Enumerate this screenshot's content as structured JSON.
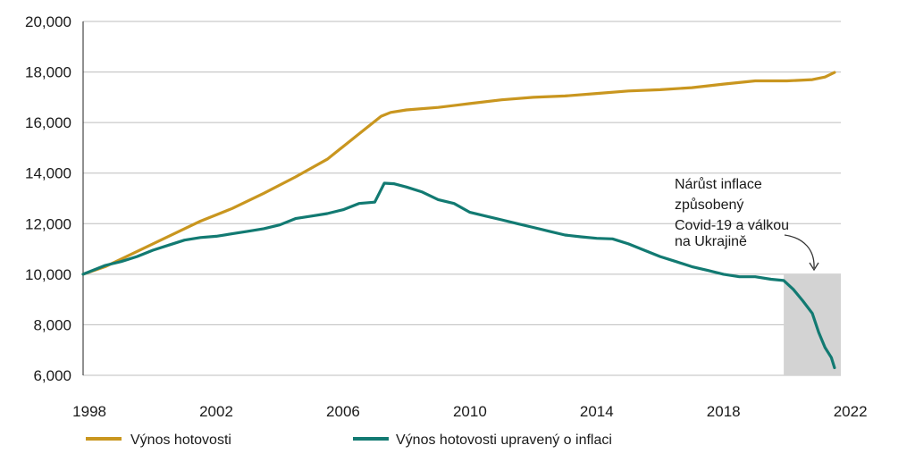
{
  "chart_data": {
    "type": "line",
    "title": "",
    "xlabel": "",
    "ylabel": "",
    "xlim": [
      1997.8,
      2021.7
    ],
    "ylim": [
      6000,
      20000
    ],
    "y_ticks": [
      6000,
      8000,
      10000,
      12000,
      14000,
      16000,
      18000,
      20000
    ],
    "y_tick_labels": [
      "6,000",
      "8,000",
      "10,000",
      "12,000",
      "14,000",
      "16,000",
      "18,000",
      "20,000"
    ],
    "x_ticks": [
      1998,
      2002,
      2006,
      2010,
      2014,
      2018,
      2022
    ],
    "x_tick_labels": [
      "1998",
      "2002",
      "2006",
      "2010",
      "2014",
      "2018",
      "2022"
    ],
    "grid": "horizontal",
    "legend_position": "bottom",
    "series": [
      {
        "name": "Výnos hotovosti",
        "color": "#C9961F",
        "x": [
          1997.8,
          1998.5,
          1999.5,
          2000.5,
          2001.5,
          2002.5,
          2003.5,
          2004.5,
          2005.5,
          2006.5,
          2007.2,
          2007.5,
          2008.0,
          2009.0,
          2010.0,
          2011.0,
          2012.0,
          2013.0,
          2014.0,
          2015.0,
          2016.0,
          2017.0,
          2018.0,
          2019.0,
          2020.0,
          2020.8,
          2021.2,
          2021.5
        ],
        "values": [
          10000,
          10300,
          10900,
          11500,
          12100,
          12600,
          13200,
          13850,
          14550,
          15550,
          16250,
          16400,
          16500,
          16600,
          16750,
          16900,
          17000,
          17050,
          17150,
          17250,
          17300,
          17380,
          17520,
          17650,
          17650,
          17700,
          17800,
          17980
        ]
      },
      {
        "name": "Výnos hotovosti upravený o inflaci",
        "color": "#127A72",
        "x": [
          1997.8,
          1998.5,
          1999.0,
          1999.5,
          2000.0,
          2000.5,
          2001.0,
          2001.5,
          2002.0,
          2002.5,
          2003.0,
          2003.5,
          2004.0,
          2004.5,
          2005.0,
          2005.5,
          2006.0,
          2006.5,
          2007.0,
          2007.3,
          2007.6,
          2008.0,
          2008.5,
          2009.0,
          2009.5,
          2010.0,
          2010.5,
          2011.0,
          2011.5,
          2012.0,
          2012.5,
          2013.0,
          2013.5,
          2014.0,
          2014.5,
          2015.0,
          2015.5,
          2016.0,
          2016.5,
          2017.0,
          2017.5,
          2018.0,
          2018.5,
          2019.0,
          2019.5,
          2019.9,
          2020.2,
          2020.5,
          2020.8,
          2021.0,
          2021.2,
          2021.4,
          2021.5
        ],
        "values": [
          10000,
          10350,
          10500,
          10700,
          10950,
          11150,
          11350,
          11450,
          11500,
          11600,
          11700,
          11800,
          11950,
          12200,
          12300,
          12400,
          12550,
          12800,
          12850,
          13600,
          13580,
          13450,
          13250,
          12950,
          12800,
          12450,
          12300,
          12150,
          12000,
          11850,
          11700,
          11550,
          11480,
          11420,
          11400,
          11200,
          10950,
          10700,
          10500,
          10300,
          10150,
          10000,
          9900,
          9900,
          9800,
          9750,
          9400,
          8950,
          8450,
          7700,
          7100,
          6700,
          6300
        ]
      }
    ],
    "shaded_region": {
      "x": [
        2019.9,
        2021.7
      ],
      "y": [
        6000,
        10000
      ],
      "color": "#d3d3d3"
    },
    "annotation": {
      "lines": [
        "Nárůst inflace",
        "způsobený",
        "Covid-19 a válkou",
        "na Ukrajině"
      ]
    }
  }
}
